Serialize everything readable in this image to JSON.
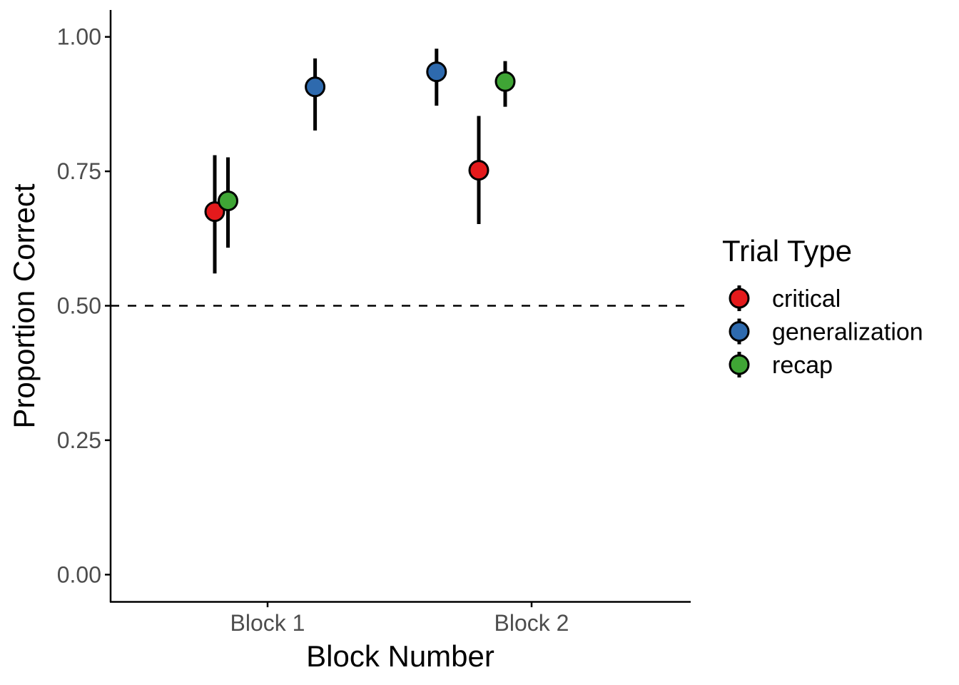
{
  "chart_data": {
    "type": "scatter",
    "title": "",
    "xlabel": "Block Number",
    "ylabel": "Proportion Correct",
    "categories": [
      "Block 1",
      "Block 2"
    ],
    "ylim": [
      -0.05,
      1.05
    ],
    "yticks": [
      "0.00",
      "0.25",
      "0.50",
      "0.75",
      "1.00"
    ],
    "reference_line": {
      "y": 0.5,
      "style": "dashed"
    },
    "grid": false,
    "legend": {
      "title": "Trial Type",
      "position": "right"
    },
    "series": [
      {
        "name": "critical",
        "color": "#E41A1C",
        "points": [
          {
            "category": "Block 1",
            "offset": -0.2,
            "y": 0.675,
            "ymin": 0.56,
            "ymax": 0.78
          },
          {
            "category": "Block 2",
            "offset": -0.2,
            "y": 0.752,
            "ymin": 0.652,
            "ymax": 0.853
          }
        ]
      },
      {
        "name": "generalization",
        "color": "#2E6AAE",
        "points": [
          {
            "category": "Block 1",
            "offset": 0.18,
            "y": 0.907,
            "ymin": 0.826,
            "ymax": 0.96
          },
          {
            "category": "Block 2",
            "offset": -0.36,
            "y": 0.935,
            "ymin": 0.872,
            "ymax": 0.978
          }
        ]
      },
      {
        "name": "recap",
        "color": "#3FA535",
        "points": [
          {
            "category": "Block 1",
            "offset": -0.15,
            "y": 0.695,
            "ymin": 0.608,
            "ymax": 0.776
          },
          {
            "category": "Block 2",
            "offset": -0.1,
            "y": 0.917,
            "ymin": 0.87,
            "ymax": 0.955
          }
        ]
      }
    ]
  }
}
